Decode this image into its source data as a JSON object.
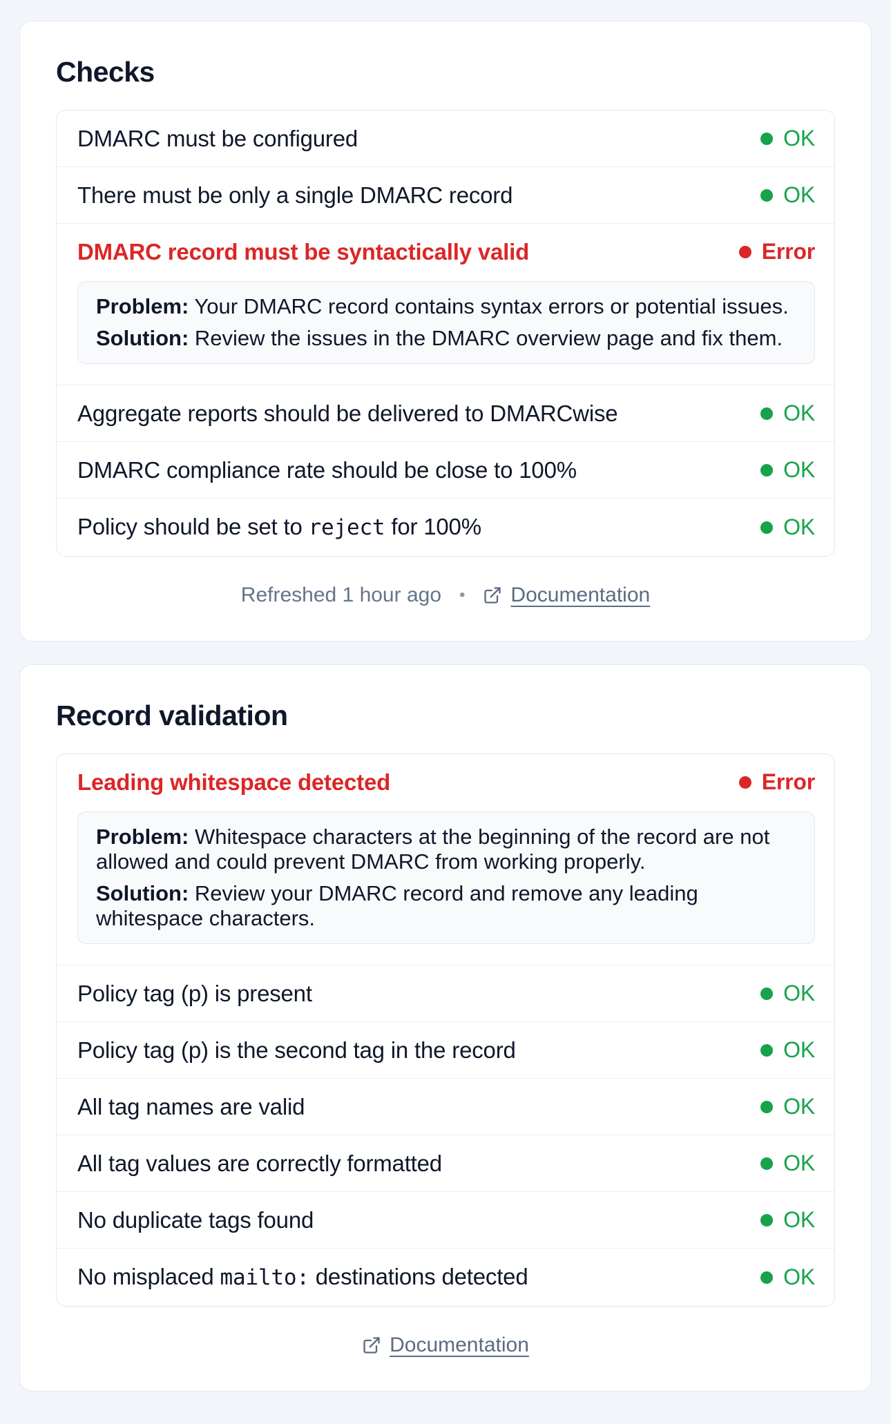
{
  "colors": {
    "page_background": "#f2f6fa",
    "ok_green": "#16a34a",
    "error_red": "#dc2626",
    "text_dark": "#0f172a",
    "muted_gray": "#64748b",
    "border": "#e2e8f0",
    "detail_box_background": "#f8fafc"
  },
  "checks_card": {
    "title": "Checks",
    "rows": [
      {
        "label_parts": [
          {
            "t": "DMARC must be configured"
          }
        ],
        "status": {
          "label": "OK",
          "type": "ok"
        }
      },
      {
        "label_parts": [
          {
            "t": "There must be only a single DMARC record"
          }
        ],
        "status": {
          "label": "OK",
          "type": "ok"
        }
      },
      {
        "label_parts": [
          {
            "t": "DMARC record must be syntactically valid"
          }
        ],
        "status": {
          "label": "Error",
          "type": "error"
        },
        "detail": {
          "problem_label": "Problem:",
          "problem": "Your DMARC record contains syntax errors or potential issues.",
          "solution_label": "Solution:",
          "solution": "Review the issues in the DMARC overview page and fix them."
        }
      },
      {
        "label_parts": [
          {
            "t": "Aggregate reports should be delivered to DMARCwise"
          }
        ],
        "status": {
          "label": "OK",
          "type": "ok"
        }
      },
      {
        "label_parts": [
          {
            "t": "DMARC compliance rate should be close to 100%"
          }
        ],
        "status": {
          "label": "OK",
          "type": "ok"
        }
      },
      {
        "label_parts": [
          {
            "t": "Policy should be set to "
          },
          {
            "c": "reject"
          },
          {
            "t": " for 100%"
          }
        ],
        "status": {
          "label": "OK",
          "type": "ok"
        }
      }
    ],
    "footer": {
      "refreshed": "Refreshed 1 hour ago",
      "separator": "•",
      "documentation": "Documentation"
    }
  },
  "validation_card": {
    "title": "Record validation",
    "rows": [
      {
        "label_parts": [
          {
            "t": "Leading whitespace detected"
          }
        ],
        "status": {
          "label": "Error",
          "type": "error"
        },
        "detail": {
          "problem_label": "Problem:",
          "problem": "Whitespace characters at the beginning of the record are not allowed and could prevent DMARC from working properly.",
          "solution_label": "Solution:",
          "solution": "Review your DMARC record and remove any leading whitespace characters."
        }
      },
      {
        "label_parts": [
          {
            "t": "Policy tag (p) is present"
          }
        ],
        "status": {
          "label": "OK",
          "type": "ok"
        }
      },
      {
        "label_parts": [
          {
            "t": "Policy tag (p) is the second tag in the record"
          }
        ],
        "status": {
          "label": "OK",
          "type": "ok"
        }
      },
      {
        "label_parts": [
          {
            "t": "All tag names are valid"
          }
        ],
        "status": {
          "label": "OK",
          "type": "ok"
        }
      },
      {
        "label_parts": [
          {
            "t": "All tag values are correctly formatted"
          }
        ],
        "status": {
          "label": "OK",
          "type": "ok"
        }
      },
      {
        "label_parts": [
          {
            "t": "No duplicate tags found"
          }
        ],
        "status": {
          "label": "OK",
          "type": "ok"
        }
      },
      {
        "label_parts": [
          {
            "t": "No misplaced "
          },
          {
            "c": "mailto:"
          },
          {
            "t": " destinations detected"
          }
        ],
        "status": {
          "label": "OK",
          "type": "ok"
        }
      }
    ],
    "footer": {
      "documentation": "Documentation"
    }
  }
}
